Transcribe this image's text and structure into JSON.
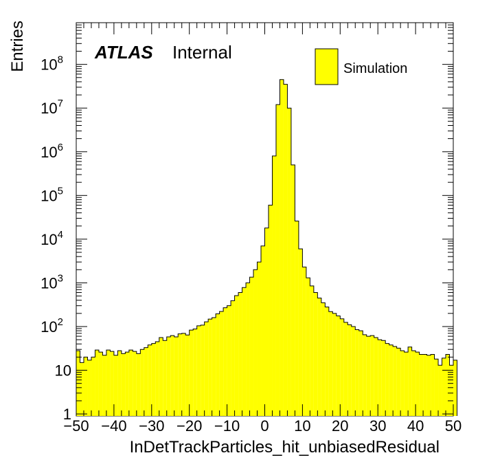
{
  "chart_data": {
    "type": "bar",
    "histogram": true,
    "xlabel": "InDetTrackParticles_hit_unbiasedResidual",
    "ylabel": "Entries",
    "xlim": [
      -50,
      50
    ],
    "ylim": [
      0.9,
      900000000
    ],
    "y_scale": "log",
    "bin_width": 1,
    "x_ticks": [
      -50,
      -40,
      -30,
      -20,
      -10,
      0,
      10,
      20,
      30,
      40,
      50
    ],
    "x_tick_labels": [
      "−50",
      "−40",
      "−30",
      "−20",
      "−10",
      "0",
      "10",
      "20",
      "30",
      "40",
      "50"
    ],
    "y_ticks": [
      {
        "value": 1,
        "base": "1",
        "exp": ""
      },
      {
        "value": 10,
        "base": "10",
        "exp": ""
      },
      {
        "value": 100,
        "base": "10",
        "exp": "2"
      },
      {
        "value": 1000,
        "base": "10",
        "exp": "3"
      },
      {
        "value": 10000,
        "base": "10",
        "exp": "4"
      },
      {
        "value": 100000,
        "base": "10",
        "exp": "5"
      },
      {
        "value": 1000000,
        "base": "10",
        "exp": "6"
      },
      {
        "value": 10000000,
        "base": "10",
        "exp": "7"
      },
      {
        "value": 100000000,
        "base": "10",
        "exp": "8"
      }
    ],
    "atlas_label": "ATLAS",
    "atlas_status": "Internal",
    "fill_color": "#ffff00",
    "line_color": "#000000",
    "series": [
      {
        "name": "Simulation",
        "bin_edges_start": -50,
        "values": [
          28,
          15,
          20,
          17,
          20,
          29,
          26,
          22,
          29,
          27,
          22,
          28,
          24,
          26,
          29,
          27,
          24,
          30,
          33,
          38,
          41,
          45,
          56,
          48,
          58,
          62,
          58,
          68,
          70,
          64,
          83,
          88,
          104,
          108,
          128,
          148,
          160,
          195,
          222,
          270,
          300,
          390,
          510,
          600,
          780,
          1000,
          1350,
          2000,
          3000,
          7000,
          18000,
          60000,
          800000,
          12000000,
          45000000,
          35000000,
          10000000,
          500000,
          26000,
          6000,
          2300,
          1300,
          850,
          600,
          450,
          350,
          280,
          220,
          200,
          175,
          150,
          125,
          110,
          100,
          85,
          80,
          65,
          60,
          62,
          56,
          50,
          48,
          41,
          38,
          35,
          32,
          28,
          26,
          34,
          28,
          26,
          23,
          23,
          22,
          23,
          18,
          13,
          19,
          23,
          13,
          17
        ]
      }
    ],
    "legend": {
      "position": "top-right",
      "entries": [
        "Simulation"
      ]
    },
    "grid": false
  }
}
